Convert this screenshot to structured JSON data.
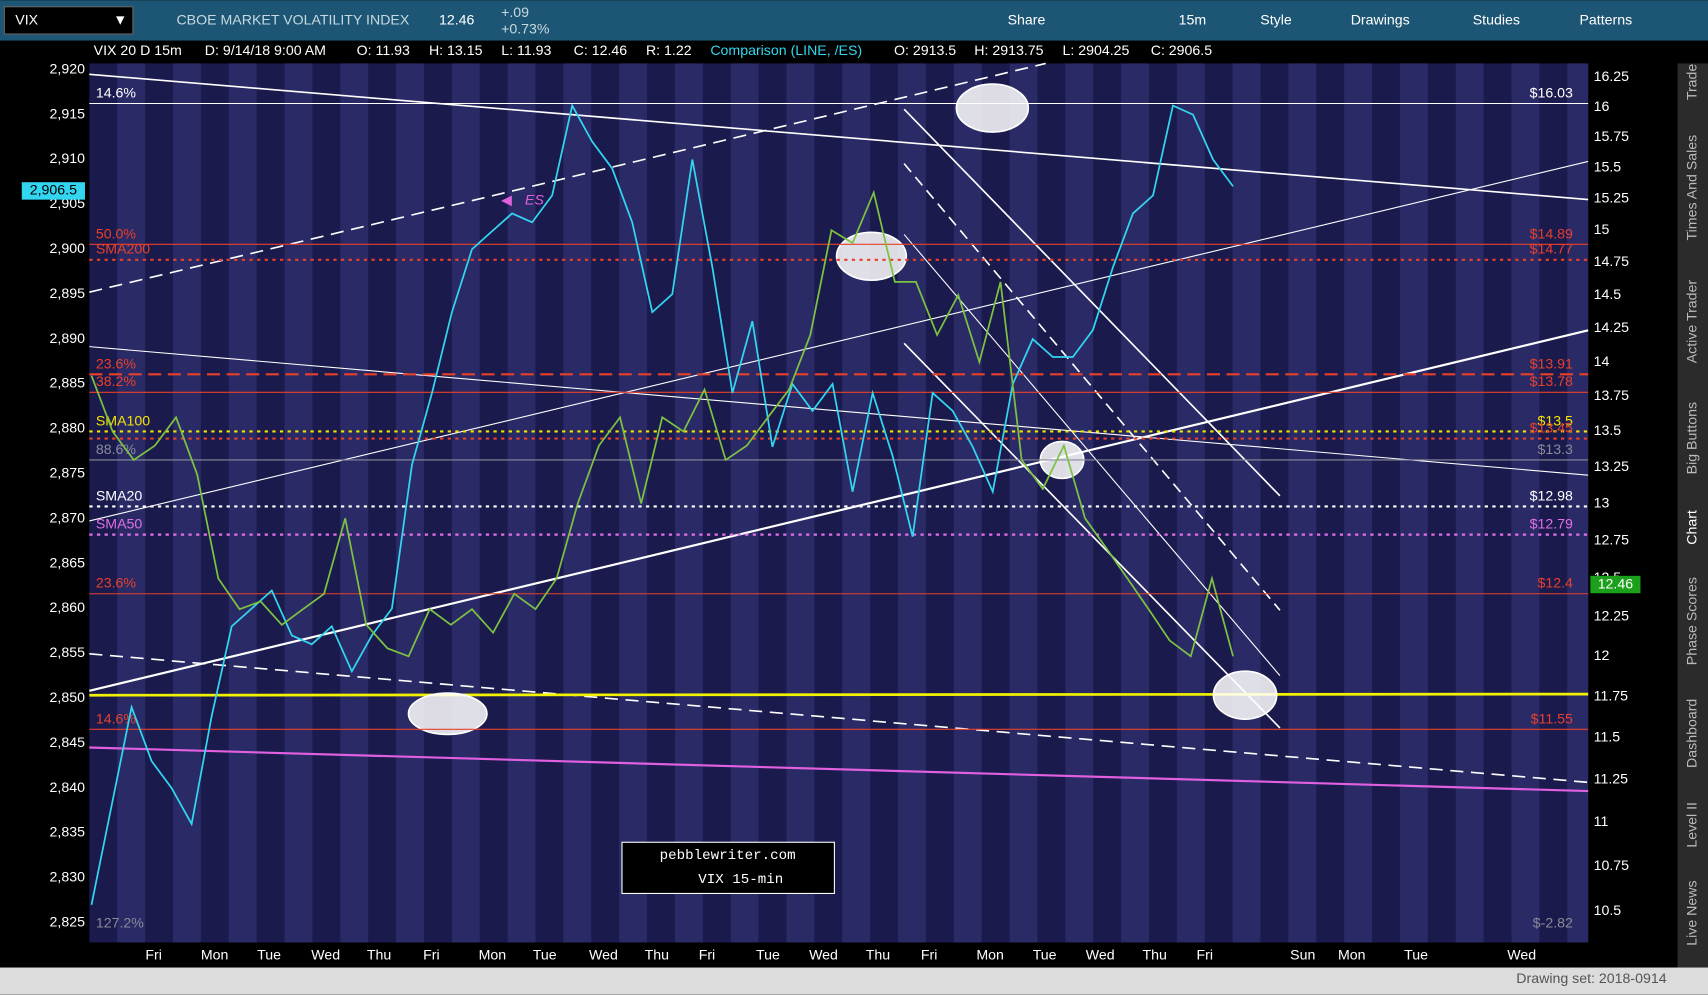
{
  "toolbar": {
    "symbol": "VIX",
    "description": "CBOE MARKET VOLATILITY INDEX",
    "last": "12.46",
    "change": "+.09",
    "change_pct": "+0.73%",
    "buttons": [
      "Share",
      "15m",
      "Style",
      "Drawings",
      "Studies",
      "Patterns"
    ]
  },
  "header": {
    "study": "VIX 20 D 15m",
    "fields": [
      "D: 9/14/18 9:00 AM",
      "O: 11.93",
      "H: 13.15",
      "L: 11.93",
      "C: 12.46",
      "R: 1.22"
    ],
    "comparison": "Comparison (LINE, /ES)",
    "comparison_fields": [
      "O: 2913.5",
      "H: 2913.75",
      "L: 2904.25",
      "C: 2906.5"
    ]
  },
  "chart": {
    "left_axis": {
      "ylim": [
        2822.8,
        2920.7
      ],
      "ticks": [
        {
          "value": 2920,
          "label": "2,920"
        },
        {
          "value": 2915,
          "label": "2,915"
        },
        {
          "value": 2910,
          "label": "2,910"
        },
        {
          "value": 2905,
          "label": "2,905"
        },
        {
          "value": 2900,
          "label": "2,900"
        },
        {
          "value": 2895,
          "label": "2,895"
        },
        {
          "value": 2890,
          "label": "2,890"
        },
        {
          "value": 2885,
          "label": "2,885"
        },
        {
          "value": 2880,
          "label": "2,880"
        },
        {
          "value": 2875,
          "label": "2,875"
        },
        {
          "value": 2870,
          "label": "2,870"
        },
        {
          "value": 2865,
          "label": "2,865"
        },
        {
          "value": 2860,
          "label": "2,860"
        },
        {
          "value": 2855,
          "label": "2,855"
        },
        {
          "value": 2850,
          "label": "2,850"
        },
        {
          "value": 2845,
          "label": "2,845"
        },
        {
          "value": 2840,
          "label": "2,840"
        },
        {
          "value": 2835,
          "label": "2,835"
        },
        {
          "value": 2830,
          "label": "2,830"
        },
        {
          "value": 2825,
          "label": "2,825"
        }
      ],
      "current": {
        "value": 2906.5,
        "label": "2,906.5"
      }
    },
    "right_axis": {
      "log": true,
      "ylim": [
        10.33,
        16.37
      ],
      "ticks": [
        16.25,
        16,
        15.75,
        15.5,
        15.25,
        15,
        14.75,
        14.5,
        14.25,
        14,
        13.75,
        13.5,
        13.25,
        13,
        12.75,
        12.5,
        12.25,
        12,
        11.75,
        11.5,
        11.25,
        11,
        10.75,
        10.5
      ],
      "current": 12.46
    },
    "x_labels": [
      "Fri",
      "Mon",
      "Tue",
      "Wed",
      "Thu",
      "Fri",
      "Mon",
      "Tue",
      "Wed",
      "Thu",
      "Fri",
      "Tue",
      "Wed",
      "Thu",
      "Fri",
      "Mon",
      "Tue",
      "Wed",
      "Thu",
      "Fri",
      "Sun",
      "Mon",
      "Tue",
      "Wed"
    ],
    "levels": [
      {
        "value": 16.03,
        "label": "$16.03",
        "color": "#ffffff",
        "tag": "14.6%",
        "style": "solid"
      },
      {
        "value": 14.89,
        "label": "$14.89",
        "color": "#e8402a",
        "tag": "50.0%",
        "style": "solid"
      },
      {
        "value": 14.77,
        "label": "$14.77",
        "color": "#e8402a",
        "tag": "SMA200",
        "style": "dotted"
      },
      {
        "value": 13.91,
        "label": "$13.91",
        "color": "#e8402a",
        "tag": "23.6%",
        "style": "dashed"
      },
      {
        "value": 13.78,
        "label": "$13.78",
        "color": "#e8402a",
        "tag": "38.2%",
        "style": "solid"
      },
      {
        "value": 13.5,
        "label": "$13.5",
        "color": "#f2e400",
        "tag": "SMA100",
        "style": "dotted"
      },
      {
        "value": 13.45,
        "label": "$13.45",
        "color": "#e8402a",
        "style": "dotted"
      },
      {
        "value": 13.3,
        "label": "$13.3",
        "color": "#8a8a9a",
        "tag": "88.6%",
        "style": "solid"
      },
      {
        "value": 12.98,
        "label": "$12.98",
        "color": "#ffffff",
        "tag": "SMA20",
        "style": "dotted"
      },
      {
        "value": 12.79,
        "label": "$12.79",
        "color": "#e070e8",
        "tag": "SMA50",
        "style": "dotted"
      },
      {
        "value": 12.4,
        "label": "$12.4",
        "color": "#e8402a",
        "tag": "23.6%",
        "style": "solid"
      },
      {
        "value": 11.55,
        "label": "$11.55",
        "color": "#e8402a",
        "tag": "14.6%",
        "style": "solid"
      },
      {
        "value": -2.82,
        "label": "$-2.82",
        "color": "#8a8a9a",
        "tag": "127.2%",
        "style": "solid"
      }
    ],
    "es_series": {
      "color": "#33d6f0",
      "values": [
        2827,
        2838,
        2849,
        2843,
        2840,
        2836,
        2848,
        2858,
        2860,
        2862,
        2857,
        2856,
        2858,
        2853,
        2857,
        2860,
        2876,
        2884,
        2893,
        2900,
        2902,
        2904,
        2903,
        2906,
        2916,
        2912,
        2909,
        2903,
        2893,
        2895,
        2910,
        2898,
        2884,
        2892,
        2878,
        2885,
        2882,
        2885,
        2873,
        2884,
        2877,
        2868,
        2884,
        2882,
        2878,
        2873,
        2885,
        2890,
        2888,
        2888,
        2891,
        2898,
        2904,
        2906,
        2916,
        2915,
        2910,
        2907
      ]
    },
    "vix_series": {
      "color": "#7cc242",
      "values": [
        13.9,
        13.5,
        13.3,
        13.4,
        13.6,
        13.2,
        12.5,
        12.3,
        12.35,
        12.2,
        12.3,
        12.4,
        12.9,
        12.2,
        12.05,
        12.0,
        12.3,
        12.2,
        12.3,
        12.15,
        12.4,
        12.3,
        12.5,
        13.0,
        13.4,
        13.6,
        13.0,
        13.6,
        13.5,
        13.8,
        13.3,
        13.4,
        13.6,
        13.8,
        14.2,
        15.0,
        14.9,
        15.3,
        14.6,
        14.6,
        14.2,
        14.5,
        14.0,
        14.6,
        13.3,
        13.1,
        13.4,
        12.9,
        12.7,
        12.5,
        12.3,
        12.1,
        12.0,
        12.5,
        12.0
      ]
    },
    "annotation": "ES",
    "watermark": [
      "pebblewriter.com",
      "VIX 15-min"
    ]
  },
  "sidebar": [
    "Trade",
    "Times And Sales",
    "Active Trader",
    "Big Buttons",
    "Chart",
    "Phase Scores",
    "Dashboard",
    "Level II",
    "Live News"
  ],
  "footer": {
    "drawing_set": "Drawing set: 2018-0914"
  }
}
